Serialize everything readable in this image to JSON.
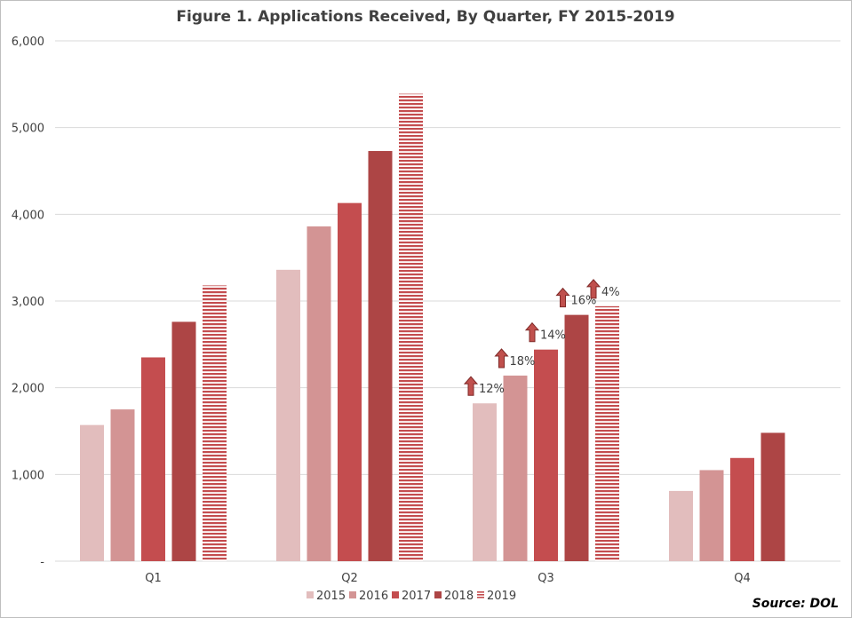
{
  "chart_data": {
    "type": "bar",
    "title": "Figure 1. Applications Received, By Quarter, FY 2015-2019",
    "categories": [
      "Q1",
      "Q2",
      "Q3",
      "Q4"
    ],
    "ylim": [
      0,
      6000
    ],
    "yticks": [
      {
        "value": 0,
        "label": "-"
      },
      {
        "value": 1000,
        "label": "1,000"
      },
      {
        "value": 2000,
        "label": "2,000"
      },
      {
        "value": 3000,
        "label": "3,000"
      },
      {
        "value": 4000,
        "label": "4,000"
      },
      {
        "value": 5000,
        "label": "5,000"
      },
      {
        "value": 6000,
        "label": "6,000"
      }
    ],
    "grid": "horizontal",
    "legend_position": "bottom",
    "series": [
      {
        "name": "2015",
        "color": "#e2bdbd",
        "values": [
          1570,
          3360,
          1820,
          810
        ]
      },
      {
        "name": "2016",
        "color": "#d39494",
        "values": [
          1750,
          3860,
          2140,
          1050
        ]
      },
      {
        "name": "2017",
        "color": "#c44d4f",
        "values": [
          2350,
          4130,
          2440,
          1190
        ]
      },
      {
        "name": "2018",
        "color": "#ad4545",
        "values": [
          2760,
          4730,
          2840,
          1480
        ]
      },
      {
        "name": "2019",
        "color": "#c44d4f",
        "pattern": "horizontal-stripes",
        "values": [
          3180,
          5390,
          2940,
          null
        ]
      }
    ],
    "annotations": [
      {
        "category": "Q3",
        "series": "2015",
        "text": "12%",
        "icon": "up-arrow-icon"
      },
      {
        "category": "Q3",
        "series": "2016",
        "text": "18%",
        "icon": "up-arrow-icon"
      },
      {
        "category": "Q3",
        "series": "2017",
        "text": "14%",
        "icon": "up-arrow-icon"
      },
      {
        "category": "Q3",
        "series": "2018",
        "text": "16%",
        "icon": "up-arrow-icon"
      },
      {
        "category": "Q3",
        "series": "2019",
        "text": "4%",
        "icon": "up-arrow-icon"
      }
    ],
    "source": "Source: DOL"
  }
}
